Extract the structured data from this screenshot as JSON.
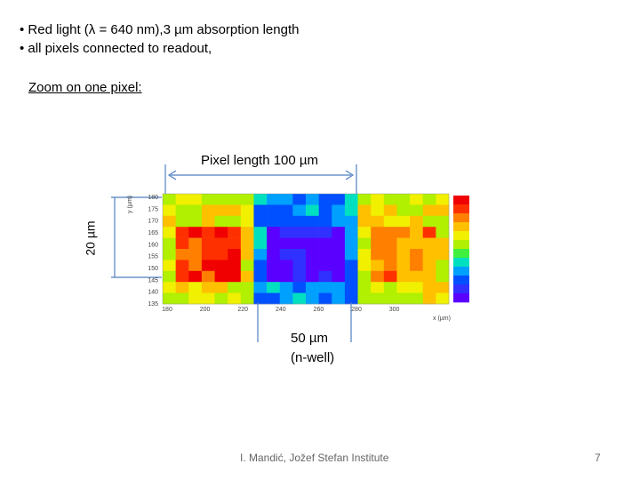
{
  "bullets": [
    "• Red light (λ = 640 nm),3 µm absorption length",
    "• all pixels connected to readout,"
  ],
  "zoom_caption": "Zoom on one pixel:",
  "pixel_length_label": "Pixel length 100 µm",
  "height_label": "20 µm",
  "nwell_label": [
    "50 µm",
    "(n-well)"
  ],
  "heatmap": {
    "y_axis_label": "y (µm)",
    "x_axis_label": "x (µm)",
    "y_ticks": [
      "180",
      "175",
      "170",
      "165",
      "160",
      "155",
      "150",
      "145",
      "140",
      "135"
    ],
    "x_ticks": [
      "180",
      "200",
      "220",
      "240",
      "260",
      "280",
      "300"
    ]
  },
  "footer": {
    "author": "I. Mandić, Jožef Stefan Institute",
    "page": "7"
  }
}
